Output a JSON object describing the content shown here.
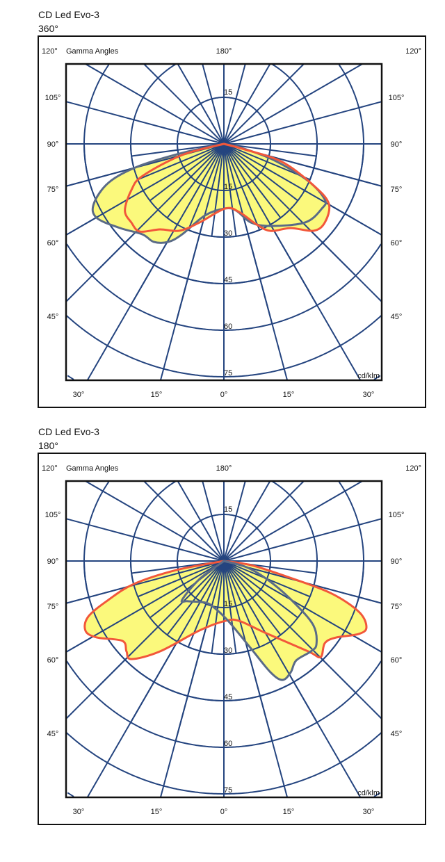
{
  "chart_data": [
    {
      "type": "polar",
      "title": "CD Led Evo-3",
      "subtitle": "360°",
      "corner_label_left": "120°",
      "angle_axis_label": "Gamma Angles",
      "top_label": "180°",
      "corner_label_right": "120°",
      "side_labels": [
        "105°",
        "90°",
        "75°",
        "60°",
        "45°"
      ],
      "bottom_labels": [
        "30°",
        "15°",
        "0°",
        "15°",
        "30°"
      ],
      "radial_ticks": [
        15,
        30,
        45,
        60,
        75
      ],
      "radial_top_tick": "15",
      "unit": "cd/klm",
      "grid": true,
      "series": [
        {
          "color": "#5a6b87",
          "points": [
            [
              -90,
              0
            ],
            [
              -77.8,
              13.7
            ],
            [
              -75.2,
              29.0
            ],
            [
              -71.4,
              39.2
            ],
            [
              -65.3,
              46.1
            ],
            [
              -59.9,
              47.4
            ],
            [
              -51.1,
              43.1
            ],
            [
              -42.0,
              39.2
            ],
            [
              -35.6,
              38.8
            ],
            [
              -29.6,
              36.3
            ],
            [
              -24.8,
              32.1
            ],
            [
              -14.7,
              23.8
            ],
            [
              1.2,
              20.8
            ],
            [
              10.6,
              21.9
            ],
            [
              19.0,
              26.8
            ],
            [
              29.6,
              30.4
            ],
            [
              46.0,
              36.4
            ],
            [
              56.6,
              37.8
            ],
            [
              61.1,
              37.1
            ],
            [
              66.3,
              29.6
            ],
            [
              72.1,
              16.7
            ],
            [
              77.0,
              6.0
            ],
            [
              90,
              0
            ]
          ]
        },
        {
          "color": "#f2573a",
          "points": [
            [
              -90,
              0
            ],
            [
              -75.1,
              13.9
            ],
            [
              -68.5,
              28.1
            ],
            [
              -63.6,
              33.2
            ],
            [
              -56.1,
              38.4
            ],
            [
              -49.6,
              39.1
            ],
            [
              -43.8,
              39.1
            ],
            [
              -36.8,
              34.4
            ],
            [
              -27.1,
              31.4
            ],
            [
              -17.2,
              26.5
            ],
            [
              1.2,
              20.8
            ],
            [
              12.7,
              22.5
            ],
            [
              22.1,
              28.0
            ],
            [
              28.2,
              31.8
            ],
            [
              38.4,
              34.6
            ],
            [
              45.9,
              40.2
            ],
            [
              52.1,
              41.2
            ],
            [
              60.3,
              38.9
            ],
            [
              65.1,
              31.9
            ],
            [
              72.8,
              19.7
            ],
            [
              75.1,
              6.9
            ],
            [
              90,
              0
            ]
          ]
        }
      ]
    },
    {
      "type": "polar",
      "title": "CD Led Evo-3",
      "subtitle": "180°",
      "corner_label_left": "120°",
      "angle_axis_label": "Gamma Angles",
      "top_label": "180°",
      "corner_label_right": "120°",
      "side_labels": [
        "105°",
        "90°",
        "75°",
        "60°",
        "45°"
      ],
      "bottom_labels": [
        "30°",
        "15°",
        "0°",
        "15°",
        "30°"
      ],
      "radial_ticks": [
        15,
        30,
        45,
        60,
        75
      ],
      "radial_top_tick": "15",
      "unit": "cd/klm",
      "grid": true,
      "series": [
        {
          "color": "#f2573a",
          "points": [
            [
              -90,
              0
            ],
            [
              -79.2,
              15.5
            ],
            [
              -75.7,
              29.8
            ],
            [
              -71.4,
              39.2
            ],
            [
              -67.7,
              47.2
            ],
            [
              -63.3,
              49.9
            ],
            [
              -59.0,
              47.8
            ],
            [
              -51.8,
              41.6
            ],
            [
              -47.1,
              42.8
            ],
            [
              -43.3,
              43.4
            ],
            [
              -35.3,
              35.7
            ],
            [
              -19.3,
              23.7
            ],
            [
              1.3,
              19.3
            ],
            [
              14.3,
              19.9
            ],
            [
              29.8,
              26.6
            ],
            [
              43.0,
              39.8
            ],
            [
              45.2,
              43.9
            ],
            [
              50.9,
              41.9
            ],
            [
              55.8,
              43.8
            ],
            [
              61.6,
              49.4
            ],
            [
              65.1,
              50.6
            ],
            [
              69.4,
              46.4
            ],
            [
              73.3,
              35.8
            ],
            [
              76.0,
              21.2
            ],
            [
              81.3,
              8.8
            ],
            [
              90,
              0
            ]
          ]
        },
        {
          "color": "#5a6b87",
          "points": [
            [
              0,
              0
            ],
            [
              -53.4,
              9.8
            ],
            [
              -47.0,
              18.4
            ],
            [
              -41.9,
              17.4
            ],
            [
              -24.2,
              14.7
            ],
            [
              -12.8,
              15.2
            ],
            [
              4.0,
              19.3
            ],
            [
              17.2,
              29.5
            ],
            [
              22.7,
              38.8
            ],
            [
              26.2,
              42.7
            ],
            [
              31.0,
              41.8
            ],
            [
              36.0,
              39.6
            ],
            [
              43.9,
              40.4
            ],
            [
              48.0,
              40.1
            ],
            [
              54.2,
              35.6
            ],
            [
              58.8,
              27.2
            ],
            [
              65.1,
              17.5
            ],
            [
              74.1,
              8.2
            ],
            [
              90,
              0
            ]
          ]
        }
      ]
    }
  ],
  "style": {
    "grid_color": "#24447f",
    "fill_color": "#fbf97c"
  }
}
